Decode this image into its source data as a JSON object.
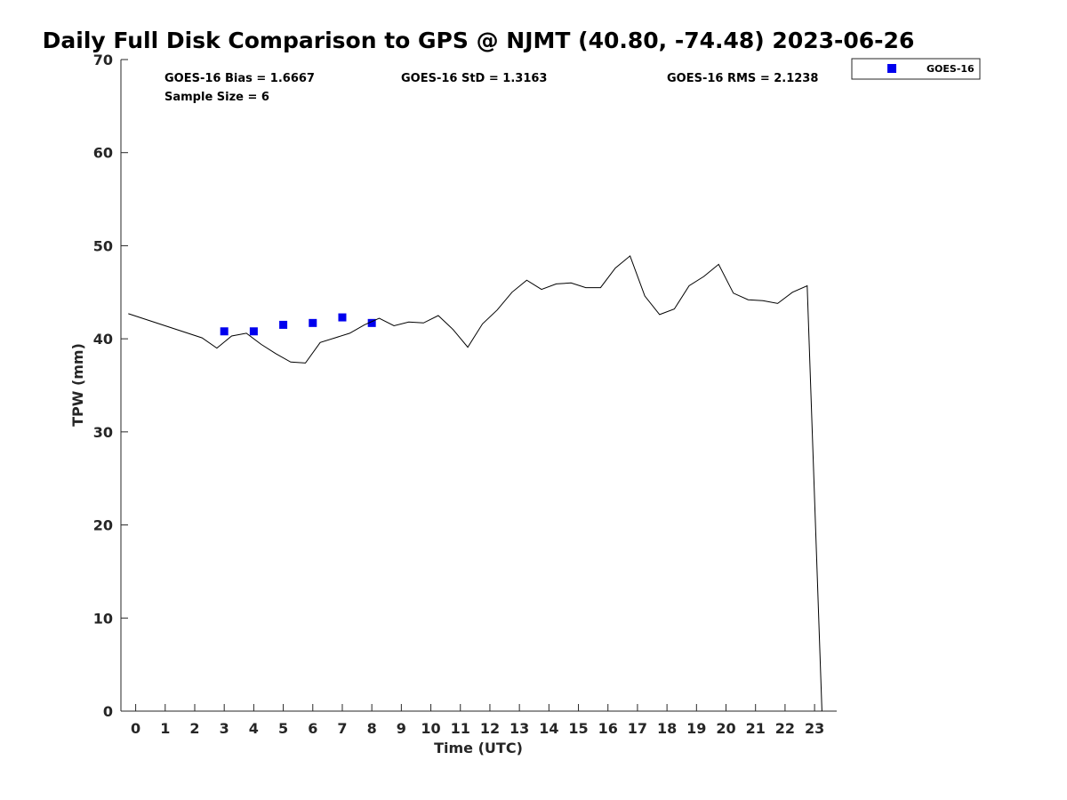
{
  "chart_data": {
    "type": "scatter",
    "title": "Daily Full Disk Comparison to GPS @ NJMT (40.80, -74.48) 2023-06-26",
    "xlabel": "Time (UTC)",
    "ylabel": "TPW (mm)",
    "xlim": [
      -0.5,
      23.75
    ],
    "ylim": [
      0,
      70
    ],
    "x_ticks": [
      0,
      1,
      2,
      3,
      4,
      5,
      6,
      7,
      8,
      9,
      10,
      11,
      12,
      13,
      14,
      15,
      16,
      17,
      18,
      19,
      20,
      21,
      22,
      23
    ],
    "y_ticks": [
      0,
      10,
      20,
      30,
      40,
      50,
      60,
      70
    ],
    "grid": false,
    "legend_position": "top-right, outside plot",
    "stats": {
      "bias": "GOES-16 Bias = 1.6667",
      "std": "GOES-16 StD = 1.3163",
      "rms": "GOES-16 RMS = 2.1238",
      "sample": "Sample Size = 6"
    },
    "series": [
      {
        "name": "GOES-16",
        "kind": "scatter",
        "color": "#0000ee",
        "marker": "square",
        "x": [
          3,
          4,
          5,
          6,
          7,
          8
        ],
        "y": [
          40.8,
          40.8,
          41.5,
          41.7,
          42.3,
          41.7
        ]
      },
      {
        "kind": "line",
        "color": "#000000",
        "x": [
          -0.25,
          2.25,
          2.75,
          3.25,
          3.75,
          4.25,
          4.75,
          5.25,
          5.75,
          6.25,
          6.75,
          7.25,
          7.75,
          8.25,
          8.75,
          9.25,
          9.75,
          10.25,
          10.75,
          11.25,
          11.75,
          12.25,
          12.75,
          13.25,
          13.75,
          14.25,
          14.75,
          15.25,
          15.75,
          16.25,
          16.75,
          17.25,
          17.75,
          18.25,
          18.75,
          19.25,
          19.75,
          20.25,
          20.75,
          21.25,
          21.75,
          22.25,
          22.75,
          23.25
        ],
        "y": [
          42.7,
          40.1,
          39.0,
          40.3,
          40.6,
          39.4,
          38.4,
          37.5,
          37.4,
          39.6,
          40.1,
          40.6,
          41.5,
          42.2,
          41.4,
          41.8,
          41.7,
          42.5,
          41.0,
          39.1,
          41.6,
          43.1,
          45.0,
          46.3,
          45.3,
          45.9,
          46.0,
          45.5,
          45.5,
          47.6,
          48.9,
          44.6,
          42.6,
          43.2,
          45.7,
          46.7,
          48.0,
          44.9,
          44.2,
          44.1,
          43.8,
          45.0,
          45.7,
          0
        ]
      }
    ]
  }
}
